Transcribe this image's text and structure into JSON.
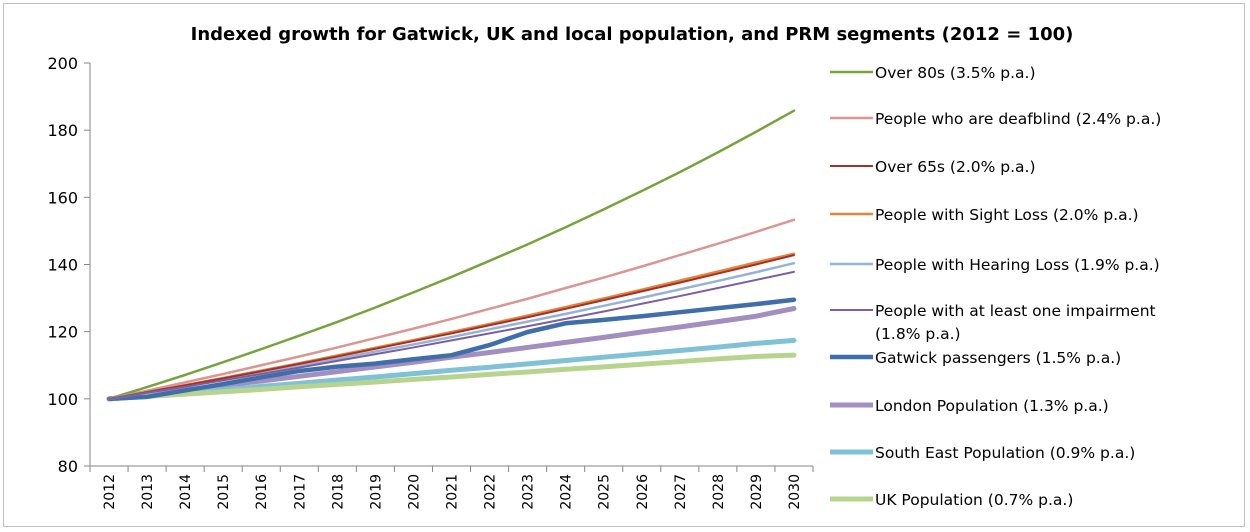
{
  "chart_data": {
    "type": "line",
    "title": "Indexed growth for Gatwick, UK and local population, and PRM segments (2012 = 100)",
    "xlabel": "",
    "ylabel": "",
    "ylim": [
      80,
      200
    ],
    "yticks": [
      "80",
      "100",
      "120",
      "140",
      "160",
      "180",
      "200"
    ],
    "categories": [
      "2012",
      "2013",
      "2014",
      "2015",
      "2016",
      "2017",
      "2018",
      "2019",
      "2020",
      "2021",
      "2022",
      "2023",
      "2024",
      "2025",
      "2026",
      "2027",
      "2028",
      "2029",
      "2030"
    ],
    "grid": false,
    "legend_position": "right",
    "series": [
      {
        "name": "Over 80s (3.5% p.a.)",
        "legend_lines": [
          "Over 80s (3.5% p.a.)"
        ],
        "color": "#77a33c",
        "width": 2.5,
        "values": [
          100,
          103.5,
          107.1,
          110.9,
          114.8,
          118.8,
          122.9,
          127.2,
          131.7,
          136.3,
          141.1,
          146.0,
          151.1,
          156.4,
          161.9,
          167.5,
          173.4,
          179.5,
          185.8
        ]
      },
      {
        "name": "People who are deafblind (2.4% p.a.)",
        "legend_lines": [
          "People who are deafblind (2.4% p.a.)"
        ],
        "color": "#d99694",
        "width": 2.5,
        "values": [
          100,
          102.4,
          104.9,
          107.4,
          110.0,
          112.6,
          115.3,
          118.1,
          120.9,
          123.8,
          126.8,
          129.8,
          133.0,
          136.1,
          139.4,
          142.8,
          146.2,
          149.7,
          153.3
        ]
      },
      {
        "name": "Over 65s (2.0% p.a.)",
        "legend_lines": [
          "Over 65s (2.0% p.a.)"
        ],
        "color": "#a4302c",
        "width": 2,
        "values": [
          100,
          102.0,
          104.0,
          106.1,
          108.2,
          110.4,
          112.6,
          114.9,
          117.2,
          119.5,
          121.9,
          124.3,
          126.8,
          129.4,
          132.0,
          134.6,
          137.3,
          140.0,
          142.8
        ]
      },
      {
        "name": "People with Sight Loss (2.0% p.a.)",
        "legend_lines": [
          "People with Sight Loss (2.0% p.a.)"
        ],
        "color": "#e6833a",
        "width": 2.5,
        "values": [
          100,
          102.0,
          104.1,
          106.2,
          108.4,
          110.6,
          112.9,
          115.2,
          117.5,
          119.9,
          122.3,
          124.8,
          127.3,
          129.9,
          132.5,
          135.2,
          137.9,
          140.6,
          143.2
        ]
      },
      {
        "name": "People with Hearing Loss (1.9% p.a.)",
        "legend_lines": [
          "People with Hearing Loss (1.9% p.a.)"
        ],
        "color": "#95b3d7",
        "width": 2.5,
        "values": [
          100,
          101.9,
          103.8,
          105.8,
          107.8,
          109.8,
          111.9,
          114.1,
          116.2,
          118.4,
          120.7,
          123.0,
          125.3,
          127.7,
          130.1,
          132.6,
          135.1,
          137.7,
          140.4
        ]
      },
      {
        "name": "People with at least one impairment (1.8% p.a.)",
        "legend_lines": [
          "People with at least one impairment",
          "(1.8% p.a.)"
        ],
        "color": "#7b5fa0",
        "width": 2,
        "values": [
          100,
          101.8,
          103.6,
          105.5,
          107.4,
          109.3,
          111.3,
          113.3,
          115.3,
          117.4,
          119.5,
          121.6,
          123.8,
          126.0,
          128.3,
          130.6,
          133.0,
          135.4,
          137.8
        ]
      },
      {
        "name": "Gatwick passengers (1.5% p.a.)",
        "legend_lines": [
          "Gatwick passengers (1.5% p.a.)"
        ],
        "color": "#3f6ea8",
        "width": 4.5,
        "values": [
          100,
          100.6,
          102.5,
          104.4,
          106.4,
          108.3,
          109.6,
          110.5,
          111.8,
          113.0,
          116.0,
          119.9,
          122.5,
          123.5,
          124.6,
          125.8,
          127.0,
          128.2,
          129.5
        ]
      },
      {
        "name": "London Population (1.3% p.a.)",
        "legend_lines": [
          "London Population (1.3% p.a.)"
        ],
        "color": "#a28ebf",
        "width": 5,
        "values": [
          100,
          101.3,
          102.6,
          104.0,
          105.3,
          106.7,
          108.1,
          109.5,
          110.9,
          112.4,
          113.8,
          115.3,
          116.8,
          118.3,
          119.9,
          121.4,
          123.0,
          124.6,
          126.9
        ]
      },
      {
        "name": "South East Population (0.9% p.a.)",
        "legend_lines": [
          "South East Population (0.9% p.a.)"
        ],
        "color": "#7fc1d5",
        "width": 5,
        "values": [
          100,
          100.9,
          101.8,
          102.7,
          103.7,
          104.6,
          105.6,
          106.5,
          107.5,
          108.5,
          109.4,
          110.4,
          111.4,
          112.4,
          113.4,
          114.4,
          115.4,
          116.5,
          117.4
        ]
      },
      {
        "name": "UK Population (0.7% p.a.)",
        "legend_lines": [
          "UK Population (0.7% p.a.)"
        ],
        "color": "#b7d48f",
        "width": 5,
        "values": [
          100,
          100.7,
          101.4,
          102.1,
          102.8,
          103.6,
          104.3,
          105.0,
          105.8,
          106.5,
          107.3,
          108.0,
          108.8,
          109.5,
          110.3,
          111.1,
          111.9,
          112.6,
          113.0
        ]
      }
    ]
  }
}
